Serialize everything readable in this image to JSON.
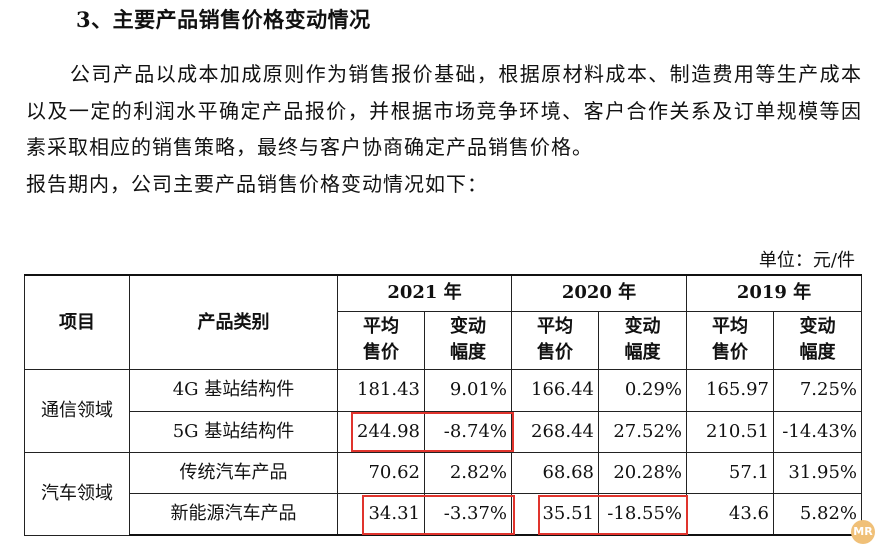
{
  "heading": "3、主要产品销售价格变动情况",
  "paragraph": [
    "公司产品以成本加成原则作为销售报价基础，根据原材料成本、制造费用等生产成本以及一定的利润水平确定产品报价，并根据市场竞争环境、客户合作关系及订单规模等因素采取相应的销售策略，最终与客户协商确定产品销售价格。",
    "报告期内，公司主要产品销售价格变动情况如下："
  ],
  "unit_label": "单位：元/件",
  "table": {
    "col_item": "项目",
    "col_category": "产品类别",
    "years": [
      "2021 年",
      "2020 年",
      "2019 年"
    ],
    "sub_price": "平均售价",
    "sub_price_l1": "平均",
    "sub_price_l2": "售价",
    "sub_change_l1": "变动",
    "sub_change_l2": "幅度",
    "groups": [
      {
        "name": "通信领域",
        "rows": [
          {
            "category": "4G 基站结构件",
            "values": [
              "181.43",
              "9.01%",
              "166.44",
              "0.29%",
              "165.97",
              "7.25%"
            ]
          },
          {
            "category": "5G 基站结构件",
            "values": [
              "244.98",
              "-8.74%",
              "268.44",
              "27.52%",
              "210.51",
              "-14.43%"
            ]
          }
        ]
      },
      {
        "name": "汽车领域",
        "rows": [
          {
            "category": "传统汽车产品",
            "values": [
              "70.62",
              "2.82%",
              "68.68",
              "20.28%",
              "57.1",
              "31.95%"
            ]
          },
          {
            "category": "新能源汽车产品",
            "values": [
              "34.31",
              "-3.37%",
              "35.51",
              "-18.55%",
              "43.6",
              "5.82%"
            ]
          }
        ]
      }
    ]
  },
  "highlight_color": "#e0342d",
  "watermark_text": "MR"
}
